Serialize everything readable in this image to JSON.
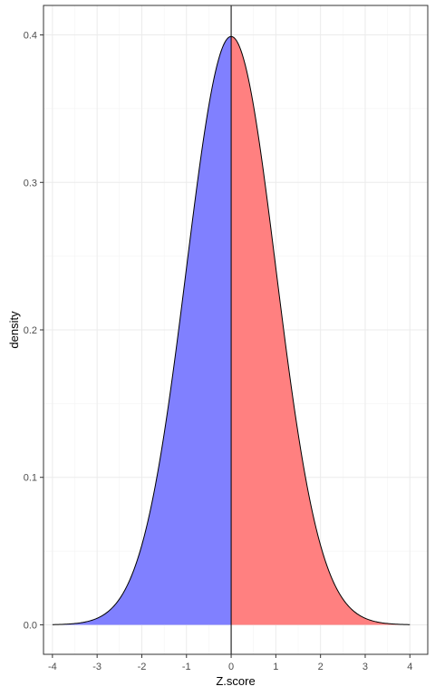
{
  "chart_data": {
    "type": "area",
    "title": "",
    "xlabel": "Z.score",
    "ylabel": "density",
    "xlim": [
      -4.2,
      4.4
    ],
    "ylim": [
      -0.02,
      0.42
    ],
    "x_ticks": [
      -4,
      -3,
      -2,
      -1,
      0,
      1,
      2,
      3,
      4
    ],
    "x_tick_labels": [
      "-4",
      "-3",
      "-2",
      "-1",
      "0",
      "1",
      "2",
      "3",
      "4"
    ],
    "y_ticks": [
      0.0,
      0.1,
      0.2,
      0.3,
      0.4
    ],
    "y_tick_labels": [
      "0.0",
      "0.1",
      "0.2",
      "0.3",
      "0.4"
    ],
    "grid": true,
    "theme": "bw",
    "distribution": "standard-normal",
    "x_range": [
      -4,
      4
    ],
    "vline_x": 0,
    "series": [
      {
        "range": [
          -4,
          0
        ],
        "fill": "#8080ff"
      },
      {
        "range": [
          0,
          4
        ],
        "fill": "#ff8080"
      }
    ],
    "curve_points": {
      "x": [
        -4,
        -3.5,
        -3,
        -2.5,
        -2,
        -1.5,
        -1,
        -0.5,
        0,
        0.5,
        1,
        1.5,
        2,
        2.5,
        3,
        3.5,
        4
      ],
      "y": [
        0.0001,
        0.0009,
        0.0044,
        0.0175,
        0.054,
        0.1295,
        0.242,
        0.3521,
        0.3989,
        0.3521,
        0.242,
        0.1295,
        0.054,
        0.0175,
        0.0044,
        0.0009,
        0.0001
      ]
    }
  }
}
